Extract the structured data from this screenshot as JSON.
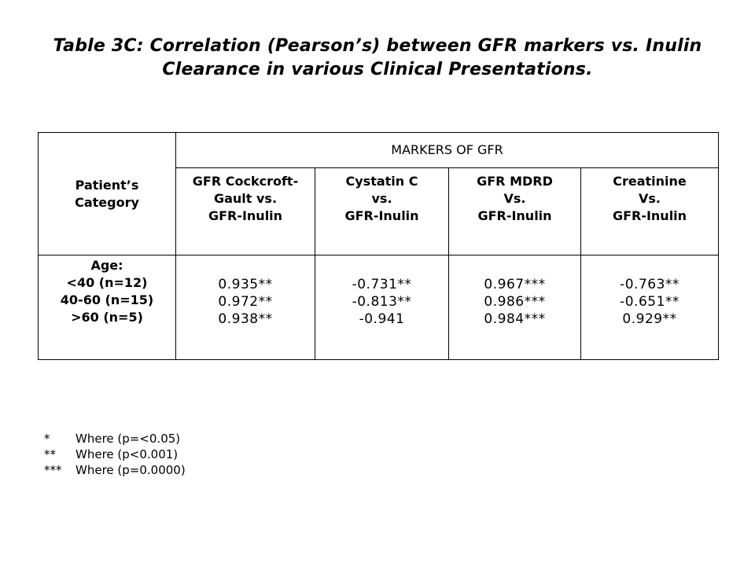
{
  "title": {
    "line1": "Table 3C: Correlation (Pearson’s) between GFR markers vs. Inulin",
    "line2": "Clearance in various Clinical Presentations."
  },
  "table": {
    "row_header": [
      "Patient’s",
      "Category"
    ],
    "group_header": "MARKERS OF GFR",
    "columns": [
      [
        "GFR Cockcroft-",
        "Gault vs.",
        "GFR-Inulin"
      ],
      [
        "Cystatin C",
        "vs.",
        "GFR-Inulin"
      ],
      [
        "GFR MDRD",
        "Vs.",
        "GFR-Inulin"
      ],
      [
        "Creatinine",
        "Vs.",
        "GFR-Inulin"
      ]
    ],
    "category_lines": [
      "Age:",
      "<40 (n=12)",
      "40-60 (n=15)",
      ">60 (n=5)"
    ],
    "values": [
      [
        "0.935**",
        "0.972**",
        "0.938**"
      ],
      [
        "-0.731**",
        "-0.813**",
        "-0.941"
      ],
      [
        "0.967***",
        "0.986***",
        "0.984***"
      ],
      [
        "-0.763**",
        "-0.651**",
        "0.929**"
      ]
    ]
  },
  "footnotes": [
    {
      "symbol": "*",
      "text": "Where (p=<0.05)"
    },
    {
      "symbol": "**",
      "text": "Where (p<0.001)"
    },
    {
      "symbol": "***",
      "text": "Where (p=0.0000)"
    }
  ]
}
